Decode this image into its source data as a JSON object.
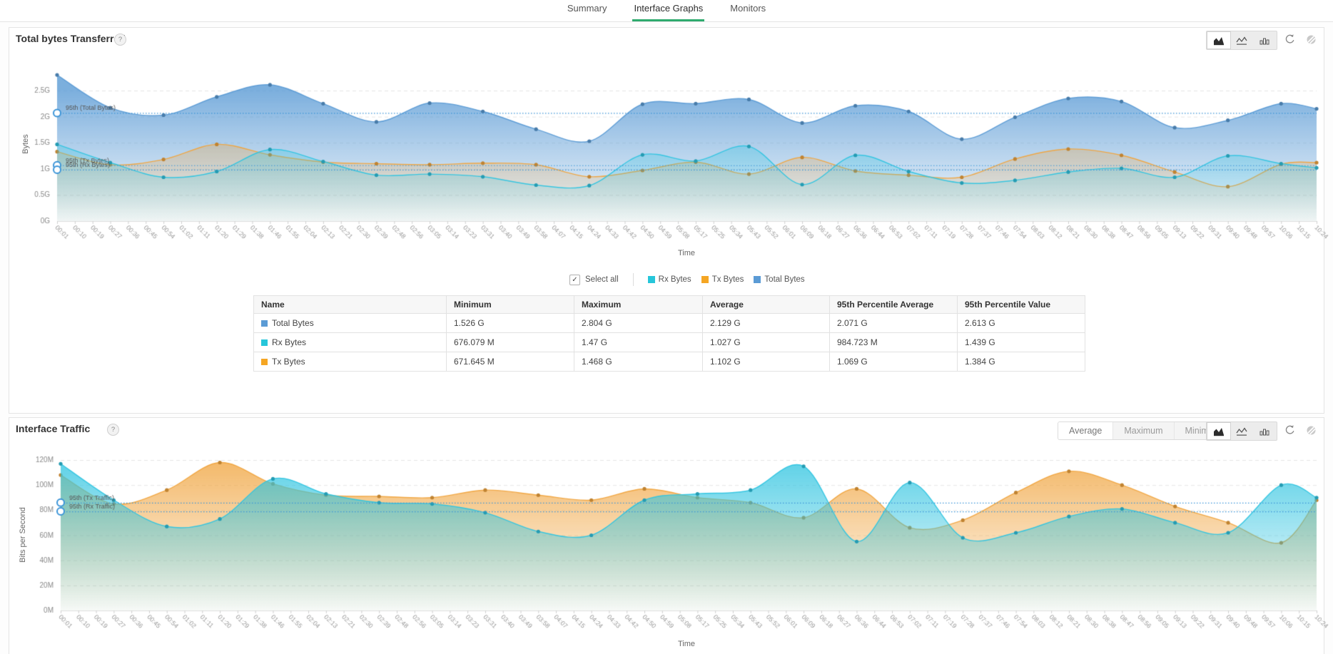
{
  "colors": {
    "accent_green": "#2eab6e",
    "percentile_line": "#3a94d8",
    "total_bytes": "#5b9bd5",
    "rx_bytes": "#26c6da",
    "tx_bytes": "#f5a623"
  },
  "icons": {
    "chart_types": [
      "area-chart-icon",
      "line-chart-icon",
      "bar-chart-icon"
    ],
    "actions": [
      "refresh-icon",
      "circle-slash-icon"
    ],
    "help": "question-mark-icon"
  },
  "tabs": {
    "items": [
      {
        "label": "Summary",
        "active": false
      },
      {
        "label": "Interface Graphs",
        "active": true
      },
      {
        "label": "Monitors",
        "active": false
      }
    ]
  },
  "panel1": {
    "title": "Total bytes Transferred",
    "help_label": "?"
  },
  "panel2": {
    "title": "Interface Traffic",
    "help_label": "?",
    "view_buttons": [
      "Average",
      "Maximum",
      "Minimum"
    ],
    "active_view_button": "Average"
  },
  "legend": {
    "select_all_label": "Select all",
    "select_all_checked": true,
    "checkmark": "✓",
    "items": [
      {
        "label": "Rx Bytes",
        "color": "#26c6da"
      },
      {
        "label": "Tx Bytes",
        "color": "#f5a623"
      },
      {
        "label": "Total Bytes",
        "color": "#5b9bd5"
      }
    ]
  },
  "table": {
    "headers": [
      "Name",
      "Minimum",
      "Maximum",
      "Average",
      "95th Percentile Average",
      "95th Percentile Value"
    ],
    "rows": [
      {
        "name": "Total Bytes",
        "color": "#5b9bd5",
        "minimum": "1.526 G",
        "maximum": "2.804 G",
        "average": "2.129 G",
        "p95_average": "2.071 G",
        "p95_value": "2.613 G"
      },
      {
        "name": "Rx Bytes",
        "color": "#26c6da",
        "minimum": "676.079 M",
        "maximum": "1.47 G",
        "average": "1.027 G",
        "p95_average": "984.723 M",
        "p95_value": "1.439 G"
      },
      {
        "name": "Tx Bytes",
        "color": "#f5a623",
        "minimum": "671.645 M",
        "maximum": "1.468 G",
        "average": "1.102 G",
        "p95_average": "1.069 G",
        "p95_value": "1.384 G"
      }
    ]
  },
  "chart_data": [
    {
      "type": "area",
      "title": "Total bytes Transferred",
      "xlabel": "Time",
      "ylabel": "Bytes",
      "ylim": [
        0,
        2.9
      ],
      "y_unit": "G",
      "grid": true,
      "yticks": [
        "0G",
        "0.5G",
        "1G",
        "1.5G",
        "2G",
        "2.5G"
      ],
      "x_labels": [
        "00:01",
        "00:10",
        "00:19",
        "00:27",
        "00:36",
        "00:45",
        "00:54",
        "01:02",
        "01:11",
        "01:20",
        "01:29",
        "01:38",
        "01:46",
        "01:55",
        "02:04",
        "02:13",
        "02:21",
        "02:30",
        "02:39",
        "02:48",
        "02:56",
        "03:05",
        "03:14",
        "03:23",
        "03:31",
        "03:40",
        "03:49",
        "03:58",
        "04:07",
        "04:15",
        "04:24",
        "04:33",
        "04:42",
        "04:50",
        "04:59",
        "05:08",
        "05:17",
        "05:25",
        "05:34",
        "05:43",
        "05:52",
        "06:01",
        "06:09",
        "06:18",
        "06:27",
        "06:36",
        "06:44",
        "06:53",
        "07:02",
        "07:11",
        "07:19",
        "07:28",
        "07:37",
        "07:46",
        "07:54",
        "08:03",
        "08:12",
        "08:21",
        "08:30",
        "08:38",
        "08:47",
        "08:56",
        "09:05",
        "09:13",
        "09:22",
        "09:31",
        "09:40",
        "09:48",
        "09:57",
        "10:06",
        "10:15",
        "10:24"
      ],
      "sample_times": [
        "00:01",
        "00:27",
        "00:54",
        "01:20",
        "01:46",
        "02:13",
        "02:39",
        "03:05",
        "03:31",
        "03:58",
        "04:24",
        "04:50",
        "05:17",
        "05:43",
        "06:09",
        "06:36",
        "07:02",
        "07:28",
        "07:54",
        "08:21",
        "08:47",
        "09:13",
        "09:40",
        "10:06",
        "10:24"
      ],
      "sample_indices": [
        0,
        3,
        6,
        9,
        12,
        15,
        18,
        21,
        24,
        27,
        30,
        33,
        36,
        39,
        42,
        45,
        48,
        51,
        54,
        57,
        60,
        63,
        66,
        69,
        71
      ],
      "series": [
        {
          "name": "Total Bytes",
          "color": "#5b9bd5",
          "unit": "G",
          "values": [
            2.8,
            2.17,
            2.03,
            2.38,
            2.61,
            2.25,
            1.9,
            2.26,
            2.1,
            1.76,
            1.53,
            2.24,
            2.25,
            2.33,
            1.88,
            2.21,
            2.1,
            1.57,
            1.99,
            2.35,
            2.29,
            1.79,
            1.93,
            2.25,
            2.15
          ]
        },
        {
          "name": "Tx Bytes",
          "color": "#f0a43e",
          "unit": "G",
          "values": [
            1.33,
            1.08,
            1.18,
            1.47,
            1.27,
            1.13,
            1.1,
            1.08,
            1.11,
            1.08,
            0.85,
            0.97,
            1.13,
            0.9,
            1.22,
            0.96,
            0.88,
            0.84,
            1.19,
            1.38,
            1.26,
            0.94,
            0.66,
            1.09,
            1.12
          ]
        },
        {
          "name": "Rx Bytes",
          "color": "#2fc4e0",
          "unit": "G",
          "values": [
            1.47,
            1.12,
            0.84,
            0.95,
            1.37,
            1.14,
            0.88,
            0.9,
            0.85,
            0.69,
            0.68,
            1.27,
            1.15,
            1.43,
            0.7,
            1.26,
            0.95,
            0.73,
            0.78,
            0.94,
            1.01,
            0.84,
            1.25,
            1.1,
            1.02
          ]
        }
      ],
      "percentile_lines": [
        {
          "label": "95th (Total Bytes)",
          "value": 2.071
        },
        {
          "label": "95th (Tx Bytes)",
          "value": 1.069
        },
        {
          "label": "95th (Rx Bytes)",
          "value": 0.985
        }
      ],
      "legend_position": "bottom"
    },
    {
      "type": "area",
      "title": "Interface Traffic",
      "xlabel": "Time",
      "ylabel": "Bits per Second",
      "ylim": [
        0,
        125
      ],
      "y_unit": "M",
      "grid": true,
      "yticks": [
        "0M",
        "20M",
        "40M",
        "60M",
        "80M",
        "100M",
        "120M"
      ],
      "x_labels": [
        "00:01",
        "00:10",
        "00:19",
        "00:27",
        "00:36",
        "00:45",
        "00:54",
        "01:02",
        "01:11",
        "01:20",
        "01:29",
        "01:38",
        "01:46",
        "01:55",
        "02:04",
        "02:13",
        "02:21",
        "02:30",
        "02:39",
        "02:48",
        "02:56",
        "03:05",
        "03:14",
        "03:23",
        "03:31",
        "03:40",
        "03:49",
        "03:58",
        "04:07",
        "04:15",
        "04:24",
        "04:33",
        "04:42",
        "04:50",
        "04:59",
        "05:08",
        "05:17",
        "05:25",
        "05:34",
        "05:43",
        "05:52",
        "06:01",
        "06:09",
        "06:18",
        "06:27",
        "06:36",
        "06:44",
        "06:53",
        "07:02",
        "07:11",
        "07:19",
        "07:28",
        "07:37",
        "07:46",
        "07:54",
        "08:03",
        "08:12",
        "08:21",
        "08:30",
        "08:38",
        "08:47",
        "08:56",
        "09:05",
        "09:13",
        "09:22",
        "09:31",
        "09:40",
        "09:48",
        "09:57",
        "10:06",
        "10:15",
        "10:24"
      ],
      "sample_times": [
        "00:01",
        "00:27",
        "00:54",
        "01:20",
        "01:46",
        "02:13",
        "02:39",
        "03:05",
        "03:31",
        "03:58",
        "04:24",
        "04:50",
        "05:17",
        "05:43",
        "06:09",
        "06:36",
        "07:02",
        "07:28",
        "07:54",
        "08:21",
        "08:47",
        "09:13",
        "09:40",
        "10:06",
        "10:24"
      ],
      "sample_indices": [
        0,
        3,
        6,
        9,
        12,
        15,
        18,
        21,
        24,
        27,
        30,
        33,
        36,
        39,
        42,
        45,
        48,
        51,
        54,
        57,
        60,
        63,
        66,
        69,
        71
      ],
      "series": [
        {
          "name": "Tx Traffic",
          "color": "#f0a43e",
          "unit": "M",
          "values": [
            108,
            85,
            96,
            118,
            101,
            92,
            91,
            90,
            96,
            92,
            88,
            97,
            90,
            86,
            74,
            97,
            66,
            72,
            94,
            111,
            100,
            83,
            70,
            54,
            88
          ]
        },
        {
          "name": "Rx Traffic",
          "color": "#2fc4e0",
          "unit": "M",
          "values": [
            117,
            88,
            67,
            73,
            105,
            93,
            86,
            85,
            78,
            63,
            60,
            88,
            93,
            96,
            115,
            55,
            102,
            58,
            62,
            75,
            81,
            70,
            62,
            100,
            90
          ]
        }
      ],
      "percentile_lines": [
        {
          "label": "95th (Tx Traffic)",
          "value": 86
        },
        {
          "label": "95th (Rx Traffic)",
          "value": 79
        }
      ],
      "legend_position": "none"
    }
  ]
}
